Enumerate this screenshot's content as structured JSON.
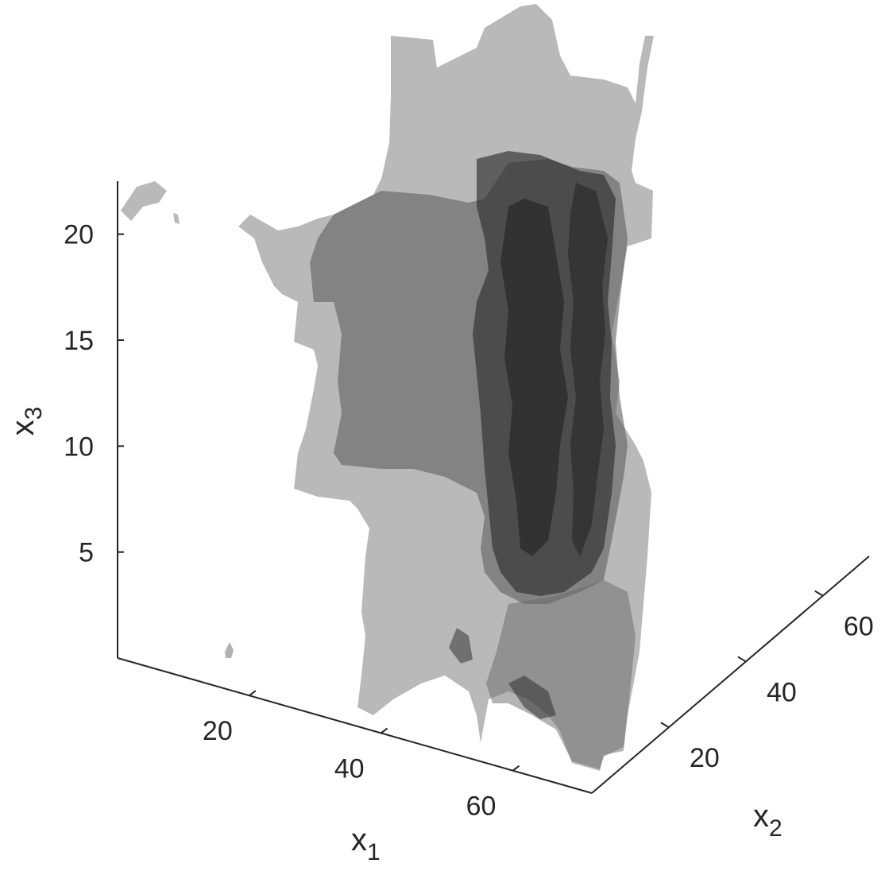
{
  "chart_data": {
    "type": "isosurface-3d",
    "title": "",
    "xlabel": {
      "base": "x",
      "sub": "1"
    },
    "ylabel": {
      "base": "x",
      "sub": "2"
    },
    "zlabel": {
      "base": "x",
      "sub": "3"
    },
    "x_ticks": [
      20,
      40,
      60
    ],
    "y_ticks": [
      20,
      40,
      60
    ],
    "z_ticks": [
      5,
      10,
      15,
      20
    ],
    "xlim": [
      0,
      72
    ],
    "ylim": [
      0,
      72
    ],
    "zlim": [
      0,
      22.5
    ],
    "grid": false,
    "surface_color": "#4d4d4d",
    "surface_opacity": 0.45,
    "axis_color": "#262626"
  }
}
